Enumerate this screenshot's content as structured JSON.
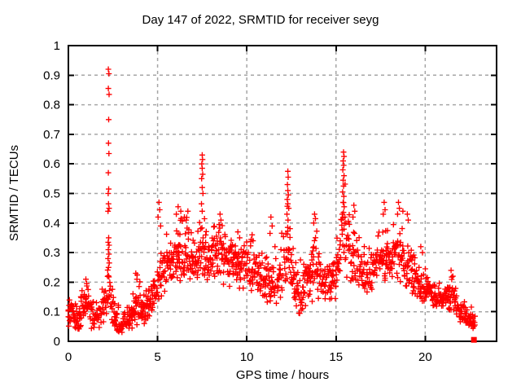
{
  "figure": {
    "background": "#ffffff"
  },
  "chart_data": {
    "type": "scatter",
    "title": "Day 147 of 2022, SRMTID for receiver seyg",
    "xlabel": "GPS time / hours",
    "ylabel": "SRMTID / TECUs",
    "xlim": [
      0,
      24
    ],
    "ylim": [
      0,
      1
    ],
    "xticks": [
      0,
      5,
      10,
      15,
      20
    ],
    "xtick_labels": [
      "0",
      "5",
      "10",
      "15",
      "20"
    ],
    "yticks": [
      0,
      0.1,
      0.2,
      0.3,
      0.4,
      0.5,
      0.6,
      0.7,
      0.8,
      0.9,
      1
    ],
    "ytick_labels": [
      "0",
      "0.1",
      "0.2",
      "0.3",
      "0.4",
      "0.5",
      "0.6",
      "0.7",
      "0.8",
      "0.9",
      "1"
    ],
    "grid": true,
    "legend": "none",
    "marker": "plus",
    "marker_color": "#ff0000",
    "grid_color": "#a6a6a6",
    "axis_color": "#000000",
    "series_name": "SRMTID",
    "x_start": 0,
    "x_end": 22.8,
    "sampling_hours": 0.0333,
    "seed": 147,
    "envelope_nodes": [
      [
        0.0,
        0.1,
        0.06
      ],
      [
        0.5,
        0.08,
        0.05
      ],
      [
        1.0,
        0.13,
        0.07
      ],
      [
        1.5,
        0.07,
        0.045
      ],
      [
        2.0,
        0.11,
        0.065
      ],
      [
        2.25,
        0.17,
        0.1
      ],
      [
        2.6,
        0.08,
        0.05
      ],
      [
        3.0,
        0.055,
        0.035
      ],
      [
        3.5,
        0.08,
        0.05
      ],
      [
        3.85,
        0.13,
        0.08
      ],
      [
        4.2,
        0.1,
        0.055
      ],
      [
        4.6,
        0.12,
        0.06
      ],
      [
        5.0,
        0.18,
        0.09
      ],
      [
        5.4,
        0.24,
        0.1
      ],
      [
        5.8,
        0.27,
        0.1
      ],
      [
        6.3,
        0.3,
        0.11
      ],
      [
        6.8,
        0.3,
        0.11
      ],
      [
        7.2,
        0.28,
        0.1
      ],
      [
        7.5,
        0.33,
        0.13
      ],
      [
        7.8,
        0.29,
        0.1
      ],
      [
        8.2,
        0.3,
        0.1
      ],
      [
        8.6,
        0.29,
        0.1
      ],
      [
        9.0,
        0.27,
        0.09
      ],
      [
        9.5,
        0.25,
        0.09
      ],
      [
        10.0,
        0.26,
        0.085
      ],
      [
        10.5,
        0.24,
        0.08
      ],
      [
        11.0,
        0.21,
        0.08
      ],
      [
        11.4,
        0.19,
        0.09
      ],
      [
        11.8,
        0.22,
        0.09
      ],
      [
        12.3,
        0.3,
        0.13
      ],
      [
        12.7,
        0.2,
        0.09
      ],
      [
        13.0,
        0.17,
        0.08
      ],
      [
        13.5,
        0.21,
        0.09
      ],
      [
        13.8,
        0.26,
        0.11
      ],
      [
        14.2,
        0.21,
        0.08
      ],
      [
        14.6,
        0.19,
        0.07
      ],
      [
        15.0,
        0.22,
        0.08
      ],
      [
        15.45,
        0.37,
        0.15
      ],
      [
        15.8,
        0.3,
        0.12
      ],
      [
        16.2,
        0.25,
        0.09
      ],
      [
        16.6,
        0.22,
        0.08
      ],
      [
        17.0,
        0.25,
        0.09
      ],
      [
        17.5,
        0.28,
        0.1
      ],
      [
        18.0,
        0.27,
        0.1
      ],
      [
        18.5,
        0.3,
        0.11
      ],
      [
        19.0,
        0.26,
        0.09
      ],
      [
        19.5,
        0.21,
        0.075
      ],
      [
        20.0,
        0.18,
        0.065
      ],
      [
        20.5,
        0.15,
        0.055
      ],
      [
        21.0,
        0.14,
        0.05
      ],
      [
        21.5,
        0.16,
        0.06
      ],
      [
        22.0,
        0.1,
        0.04
      ],
      [
        22.4,
        0.08,
        0.035
      ],
      [
        22.8,
        0.065,
        0.03
      ]
    ],
    "peak_points": [
      [
        2.24,
        0.92
      ],
      [
        2.27,
        0.905
      ],
      [
        2.24,
        0.855
      ],
      [
        2.28,
        0.835
      ],
      [
        2.26,
        0.75
      ],
      [
        2.25,
        0.67
      ],
      [
        2.27,
        0.635
      ],
      [
        2.24,
        0.57
      ],
      [
        2.26,
        0.515
      ],
      [
        2.23,
        0.5
      ],
      [
        2.25,
        0.465
      ],
      [
        2.28,
        0.45
      ],
      [
        2.22,
        0.44
      ],
      [
        2.26,
        0.35
      ],
      [
        2.23,
        0.335
      ],
      [
        2.28,
        0.325
      ],
      [
        2.24,
        0.31
      ],
      [
        2.27,
        0.295
      ],
      [
        2.22,
        0.28
      ],
      [
        2.29,
        0.265
      ],
      [
        2.25,
        0.25
      ],
      [
        0.98,
        0.21
      ],
      [
        1.03,
        0.195
      ],
      [
        3.78,
        0.23
      ],
      [
        3.84,
        0.21
      ],
      [
        5.08,
        0.47
      ],
      [
        5.12,
        0.445
      ],
      [
        5.03,
        0.42
      ],
      [
        5.17,
        0.39
      ],
      [
        6.15,
        0.455
      ],
      [
        6.3,
        0.44
      ],
      [
        6.05,
        0.43
      ],
      [
        6.5,
        0.42
      ],
      [
        6.7,
        0.44
      ],
      [
        6.6,
        0.41
      ],
      [
        7.5,
        0.63
      ],
      [
        7.52,
        0.615
      ],
      [
        7.48,
        0.6
      ],
      [
        7.5,
        0.585
      ],
      [
        7.53,
        0.565
      ],
      [
        7.47,
        0.55
      ],
      [
        7.5,
        0.52
      ],
      [
        7.54,
        0.5
      ],
      [
        7.46,
        0.465
      ],
      [
        7.5,
        0.44
      ],
      [
        8.5,
        0.43
      ],
      [
        8.55,
        0.41
      ],
      [
        8.45,
        0.395
      ],
      [
        9.5,
        0.37
      ],
      [
        9.6,
        0.35
      ],
      [
        10.3,
        0.36
      ],
      [
        10.35,
        0.34
      ],
      [
        11.35,
        0.42
      ],
      [
        11.42,
        0.39
      ],
      [
        11.3,
        0.365
      ],
      [
        12.3,
        0.575
      ],
      [
        12.32,
        0.555
      ],
      [
        12.28,
        0.53
      ],
      [
        12.3,
        0.51
      ],
      [
        12.33,
        0.495
      ],
      [
        12.27,
        0.48
      ],
      [
        12.3,
        0.465
      ],
      [
        12.35,
        0.45
      ],
      [
        12.25,
        0.43
      ],
      [
        12.31,
        0.41
      ],
      [
        12.29,
        0.385
      ],
      [
        13.8,
        0.43
      ],
      [
        13.85,
        0.415
      ],
      [
        13.75,
        0.4
      ],
      [
        15.42,
        0.64
      ],
      [
        15.45,
        0.625
      ],
      [
        15.4,
        0.61
      ],
      [
        15.43,
        0.595
      ],
      [
        15.38,
        0.58
      ],
      [
        15.45,
        0.56
      ],
      [
        15.4,
        0.545
      ],
      [
        15.42,
        0.525
      ],
      [
        15.37,
        0.505
      ],
      [
        15.44,
        0.49
      ],
      [
        15.4,
        0.47
      ],
      [
        15.46,
        0.455
      ],
      [
        15.35,
        0.43
      ],
      [
        15.5,
        0.42
      ],
      [
        15.55,
        0.4
      ],
      [
        16.0,
        0.46
      ],
      [
        16.05,
        0.44
      ],
      [
        15.95,
        0.42
      ],
      [
        17.7,
        0.47
      ],
      [
        17.75,
        0.445
      ],
      [
        17.65,
        0.43
      ],
      [
        18.5,
        0.47
      ],
      [
        18.55,
        0.45
      ],
      [
        18.45,
        0.43
      ],
      [
        18.75,
        0.44
      ],
      [
        19.0,
        0.43
      ],
      [
        19.05,
        0.41
      ],
      [
        19.75,
        0.32
      ],
      [
        19.85,
        0.3
      ],
      [
        21.45,
        0.24
      ],
      [
        21.55,
        0.22
      ]
    ],
    "last_point": {
      "x": 22.73,
      "y": 0.005,
      "marker": "filled-square"
    }
  }
}
